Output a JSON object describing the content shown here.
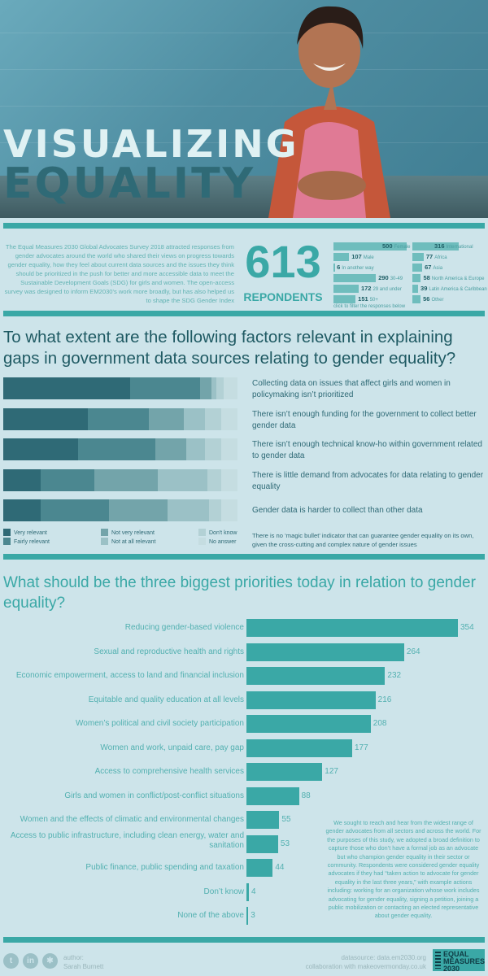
{
  "hero": {
    "title_line1": "VISUALIZING",
    "title_line2": "EQUALITY"
  },
  "intro": {
    "text": "The Equal Measures 2030 Global Advocates Survey 2018 attracted responses from gender advocates around the world who shared their views on progress towards gender equality, how they feel about current data sources and the issues they think should be prioritized in the push for better and more accessible data to meet the Sustainable Development Goals (SDG) for girls and women. The open-access survey was designed to inform EM2030's work more broadly, but has also helped us to shape the SDG Gender Index",
    "respondents_value": "613",
    "respondents_label": "REPONDENTS",
    "filter_note": "click to filter the responses below",
    "filters_left": [
      {
        "value": 500,
        "label": "Female"
      },
      {
        "value": 107,
        "label": "Male"
      },
      {
        "value": 6,
        "label": "In another way"
      },
      {
        "value": 290,
        "label": "30-49"
      },
      {
        "value": 172,
        "label": "29 and under"
      },
      {
        "value": 151,
        "label": "50+"
      }
    ],
    "filters_right": [
      {
        "value": 316,
        "label": "International"
      },
      {
        "value": 77,
        "label": "Africa"
      },
      {
        "value": 67,
        "label": "Asia"
      },
      {
        "value": 58,
        "label": "North America & Europe"
      },
      {
        "value": 39,
        "label": "Latin America & Caribbean"
      },
      {
        "value": 56,
        "label": "Other"
      }
    ]
  },
  "colors": {
    "accent": "#3aa8a6",
    "dark": "#1f5a63",
    "very_relevant": "#2f6a76",
    "fairly_relevant": "#4b8790",
    "not_very_relevant": "#73a4aa",
    "not_at_all_relevant": "#9bc1c6",
    "dont_know": "#b3d1d5",
    "no_answer": "#c5dde1"
  },
  "chart_data": [
    {
      "type": "bar",
      "stacked": true,
      "orientation": "horizontal",
      "title": "To what extent are the following factors relevant in explaining gaps in government data sources relating to gender equality?",
      "categories": [
        "Collecting data on issues that affect girls and women in policymaking isn’t prioritized",
        "There isn’t enough funding for the government to collect better gender data",
        "There isn’t enough technical know-ho within government related to gender data",
        "There is little demand from advocates for data relating to gender equality",
        "Gender data is harder to collect than other data"
      ],
      "series": [
        {
          "name": "Very relevant",
          "values": [
            54,
            36,
            32,
            16,
            16
          ]
        },
        {
          "name": "Fairly relevant",
          "values": [
            30,
            26,
            33,
            23,
            29
          ]
        },
        {
          "name": "Not very relevant",
          "values": [
            5,
            15,
            13,
            27,
            25
          ]
        },
        {
          "name": "Not at all relevant",
          "values": [
            2,
            9,
            8,
            21,
            18
          ]
        },
        {
          "name": "Don't know",
          "values": [
            3,
            7,
            7,
            6,
            5
          ]
        },
        {
          "name": "No answer",
          "values": [
            6,
            7,
            7,
            7,
            7
          ]
        }
      ],
      "legend_position": "bottom",
      "note": "There is no ‘magic bullet’ indicator that can guarantee gender equality on its own, given the cross-cutting and complex nature of gender issues"
    },
    {
      "type": "bar",
      "orientation": "horizontal",
      "title": "What should be the three biggest priorities today in relation to gender equality?",
      "categories": [
        "Reducing gender-based violence",
        "Sexual and reproductive health and rights",
        "Economic empowerment, access to land and financial inclusion",
        "Equitable and quality education at all levels",
        "Women’s political and civil society participation",
        "Women and work, unpaid care, pay gap",
        "Access to comprehensive health services",
        "Girls and women in conflict/post-conflict situations",
        "Women and the effects of climatic and environmental changes",
        "Access to public infrastructure, including clean energy, water and sanitation",
        "Public finance, public spending and taxation",
        "Don’t know",
        "None of the above"
      ],
      "values": [
        354,
        264,
        232,
        216,
        208,
        177,
        127,
        88,
        55,
        53,
        44,
        4,
        3
      ],
      "note": "We sought to reach and hear from the widest range of gender advocates from all sectors and across the world. For the purposes of this study, we adopted a broad definition to capture those who don’t have a formal job as an advocate but who champion gender equality in their sector or community. Respondents were considered gender equality advocates if they had “taken action to advocate for gender equality in the last three years,” with example actions including: working for an organization whose work includes advocating for gender equality, signing a petition, joining a public mobilization or contacting an elected representative about gender equality."
    }
  ],
  "footer": {
    "icons": [
      "twitter-icon",
      "linkedin-icon",
      "globe-icon"
    ],
    "author_label": "author:",
    "author_name": "Sarah Burnett",
    "source": "datasource: data.em2030.org",
    "collab": "collaboration with makeovermonday.co.uk",
    "logo_line1": "EQUAL",
    "logo_line2": "MEASURES",
    "logo_line3": "2030"
  }
}
